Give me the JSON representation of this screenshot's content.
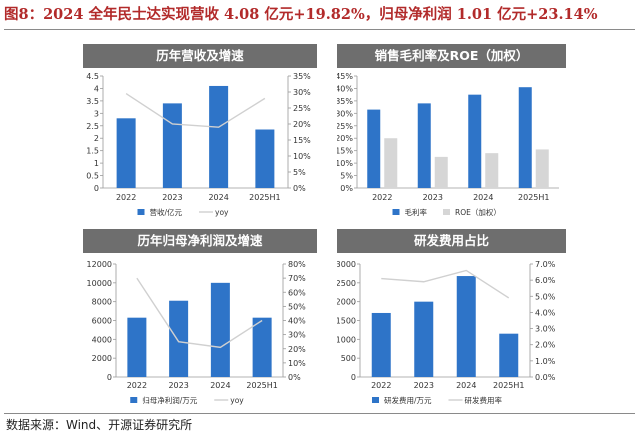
{
  "figure_title": "图8：2024 全年民士达实现营收 4.08 亿元+19.82%，归母净利润 1.01 亿元+23.14%",
  "source_note": "数据来源：Wind、开源证券研究所",
  "colors": {
    "bar_blue": "#2e74c8",
    "bar_gray": "#d6d6d6",
    "line_gray": "#d0d0d0",
    "title_red": "#b22a2a",
    "panel_header": "#6e6e6e"
  },
  "chart_data": [
    {
      "id": "revenue",
      "title": "历年营收及增速",
      "type": "bar",
      "categories": [
        "2022",
        "2023",
        "2024",
        "2025H1"
      ],
      "series": [
        {
          "name": "营收/亿元",
          "kind": "bar",
          "axis": "left",
          "color": "#2e74c8",
          "values": [
            2.8,
            3.4,
            4.1,
            2.35
          ]
        },
        {
          "name": "yoy",
          "kind": "line",
          "axis": "right",
          "color": "#d0d0d0",
          "values": [
            0.295,
            0.2,
            0.19,
            0.28
          ]
        }
      ],
      "ylim_left": [
        0,
        4.5
      ],
      "yticks_left": [
        "0",
        "0.5",
        "1",
        "1.5",
        "2",
        "2.5",
        "3",
        "3.5",
        "4",
        "4.5"
      ],
      "ylim_right": [
        0,
        0.35
      ],
      "yticks_right": [
        "0%",
        "5%",
        "10%",
        "15%",
        "20%",
        "25%",
        "30%",
        "35%"
      ],
      "legend_position": "bottom",
      "grid": false
    },
    {
      "id": "margin",
      "title": "销售毛利率及ROE（加权）",
      "type": "bar",
      "categories": [
        "2022",
        "2023",
        "2024",
        "2025H1"
      ],
      "series": [
        {
          "name": "毛利率",
          "kind": "bar",
          "axis": "left",
          "color": "#2e74c8",
          "values": [
            0.315,
            0.34,
            0.375,
            0.405
          ]
        },
        {
          "name": "ROE（加权）",
          "kind": "bar",
          "axis": "left",
          "color": "#d6d6d6",
          "values": [
            0.2,
            0.125,
            0.14,
            0.155
          ]
        }
      ],
      "ylim_left": [
        0,
        0.45
      ],
      "yticks_left": [
        "0%",
        "5%",
        "10%",
        "15%",
        "20%",
        "25%",
        "30%",
        "35%",
        "40%",
        "45%"
      ],
      "legend_position": "bottom",
      "grid": false
    },
    {
      "id": "net_profit",
      "title": "历年归母净利润及增速",
      "type": "bar",
      "categories": [
        "2022",
        "2023",
        "2024",
        "2025H1"
      ],
      "series": [
        {
          "name": "归母净利润/万元",
          "kind": "bar",
          "axis": "left",
          "color": "#2e74c8",
          "values": [
            6300,
            8100,
            10000,
            6300
          ]
        },
        {
          "name": "yoy",
          "kind": "line",
          "axis": "right",
          "color": "#d0d0d0",
          "values": [
            0.7,
            0.25,
            0.21,
            0.4
          ]
        }
      ],
      "ylim_left": [
        0,
        12000
      ],
      "yticks_left": [
        "0",
        "2000",
        "4000",
        "6000",
        "8000",
        "10000",
        "12000"
      ],
      "ylim_right": [
        0,
        0.8
      ],
      "yticks_right": [
        "0%",
        "10%",
        "20%",
        "30%",
        "40%",
        "50%",
        "60%",
        "70%",
        "80%"
      ],
      "legend_position": "bottom",
      "grid": false
    },
    {
      "id": "rd",
      "title": "研发费用占比",
      "type": "bar",
      "categories": [
        "2022",
        "2023",
        "2024",
        "2025H1"
      ],
      "series": [
        {
          "name": "研发费用/万元",
          "kind": "bar",
          "axis": "left",
          "color": "#2e74c8",
          "values": [
            1700,
            2000,
            2680,
            1150
          ]
        },
        {
          "name": "研发费用率",
          "kind": "line",
          "axis": "right",
          "color": "#d0d0d0",
          "values": [
            0.061,
            0.059,
            0.066,
            0.049
          ]
        }
      ],
      "ylim_left": [
        0,
        3000
      ],
      "yticks_left": [
        "0",
        "500",
        "1000",
        "1500",
        "2000",
        "2500",
        "3000"
      ],
      "ylim_right": [
        0,
        0.07
      ],
      "yticks_right": [
        "0.0%",
        "1.0%",
        "2.0%",
        "3.0%",
        "4.0%",
        "5.0%",
        "6.0%",
        "7.0%"
      ],
      "legend_position": "bottom",
      "grid": false
    }
  ]
}
